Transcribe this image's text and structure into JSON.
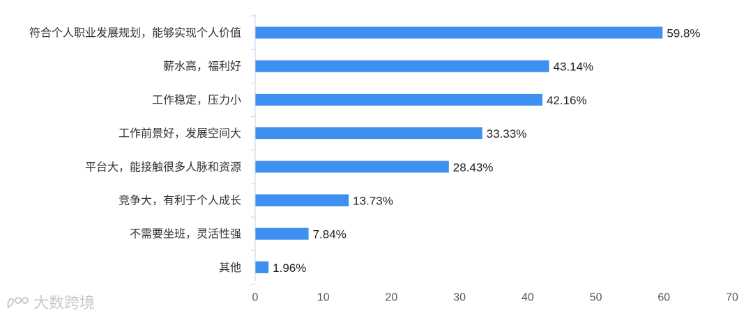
{
  "chart_data": {
    "type": "bar",
    "orientation": "horizontal",
    "categories": [
      "符合个人职业发展规划，能够实现个人价值",
      "薪水高，福利好",
      "工作稳定，压力小",
      "工作前景好，发展空间大",
      "平台大，能接触很多人脉和资源",
      "竞争大，有利于个人成长",
      "不需要坐班，灵活性强",
      "其他"
    ],
    "values": [
      59.8,
      43.14,
      42.16,
      33.33,
      28.43,
      13.73,
      7.84,
      1.96
    ],
    "value_labels": [
      "59.8%",
      "43.14%",
      "42.16%",
      "33.33%",
      "28.43%",
      "13.73%",
      "7.84%",
      "1.96%"
    ],
    "xlim": [
      0,
      70
    ],
    "xticks": [
      0,
      10,
      20,
      30,
      40,
      50,
      60,
      70
    ],
    "bar_color": "#3d8ff0",
    "grid": false,
    "title": "",
    "xlabel": "",
    "ylabel": ""
  },
  "watermark": {
    "text": "大数跨境"
  }
}
